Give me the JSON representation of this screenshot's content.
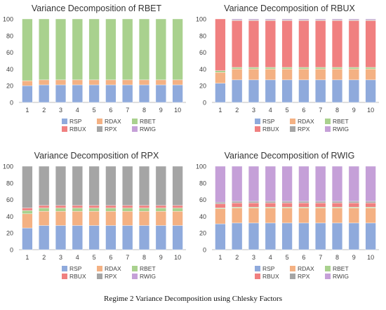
{
  "caption": "Regime 2 Variance Decomposition using Chlesky Factors",
  "colors": {
    "RSP": "#8faadc",
    "RDAX": "#f4b183",
    "RBET": "#a9d18e",
    "RBUX": "#f08080",
    "RPX": "#a5a5a5",
    "RWIG": "#c5a0d8",
    "axis": "#bfbfbf",
    "text": "#404040"
  },
  "chart_data": [
    {
      "type": "bar",
      "stacked": true,
      "title": "Variance Decomposition of RBET",
      "categories": [
        "1",
        "2",
        "3",
        "4",
        "5",
        "6",
        "7",
        "8",
        "9",
        "10"
      ],
      "ylim": [
        0,
        100
      ],
      "yticks": [
        0,
        20,
        40,
        60,
        80,
        100
      ],
      "legend": [
        "RSP",
        "RDAX",
        "RBET",
        "RBUX",
        "RPX",
        "RWIG"
      ],
      "legend_position": "bottom",
      "series": [
        {
          "name": "RSP",
          "values": [
            20,
            21,
            21,
            21,
            21,
            21,
            21,
            21,
            21,
            21
          ]
        },
        {
          "name": "RDAX",
          "values": [
            6,
            6,
            6,
            6,
            6,
            6,
            6,
            6,
            6,
            6
          ]
        },
        {
          "name": "RBET",
          "values": [
            74,
            73,
            73,
            73,
            73,
            73,
            73,
            73,
            73,
            73
          ]
        },
        {
          "name": "RBUX",
          "values": [
            0,
            0,
            0,
            0,
            0,
            0,
            0,
            0,
            0,
            0
          ]
        },
        {
          "name": "RPX",
          "values": [
            0,
            0,
            0,
            0,
            0,
            0,
            0,
            0,
            0,
            0
          ]
        },
        {
          "name": "RWIG",
          "values": [
            0,
            0,
            0,
            0,
            0,
            0,
            0,
            0,
            0,
            0
          ]
        }
      ]
    },
    {
      "type": "bar",
      "stacked": true,
      "title": "Variance Decomposition of RBUX",
      "categories": [
        "1",
        "2",
        "3",
        "4",
        "5",
        "6",
        "7",
        "8",
        "9",
        "10"
      ],
      "ylim": [
        0,
        100
      ],
      "yticks": [
        0,
        20,
        40,
        60,
        80,
        100
      ],
      "legend": [
        "RSP",
        "RDAX",
        "RBET",
        "RBUX",
        "RPX",
        "RWIG"
      ],
      "legend_position": "bottom",
      "series": [
        {
          "name": "RSP",
          "values": [
            23,
            27,
            27,
            27,
            27,
            27,
            27,
            27,
            27,
            27
          ]
        },
        {
          "name": "RDAX",
          "values": [
            13,
            13,
            13,
            13,
            13,
            13,
            13,
            13,
            13,
            13
          ]
        },
        {
          "name": "RBET",
          "values": [
            2,
            2,
            2,
            2,
            2,
            2,
            2,
            2,
            2,
            2
          ]
        },
        {
          "name": "RBUX",
          "values": [
            62,
            56,
            56,
            56,
            56,
            56,
            56,
            56,
            56,
            56
          ]
        },
        {
          "name": "RPX",
          "values": [
            0,
            1,
            1,
            1,
            1,
            1,
            1,
            1,
            1,
            1
          ]
        },
        {
          "name": "RWIG",
          "values": [
            0,
            1,
            1,
            1,
            1,
            1,
            1,
            1,
            1,
            1
          ]
        }
      ]
    },
    {
      "type": "bar",
      "stacked": true,
      "title": "Variance Decomposition of RPX",
      "categories": [
        "1",
        "2",
        "3",
        "4",
        "5",
        "6",
        "7",
        "8",
        "9",
        "10"
      ],
      "ylim": [
        0,
        100
      ],
      "yticks": [
        0,
        20,
        40,
        60,
        80,
        100
      ],
      "legend": [
        "RSP",
        "RDAX",
        "RBET",
        "RBUX",
        "RPX",
        "RWIG"
      ],
      "legend_position": "bottom",
      "series": [
        {
          "name": "RSP",
          "values": [
            26,
            29,
            29,
            29,
            29,
            29,
            29,
            29,
            29,
            29
          ]
        },
        {
          "name": "RDAX",
          "values": [
            17,
            17,
            17,
            17,
            17,
            17,
            17,
            17,
            17,
            17
          ]
        },
        {
          "name": "RBET",
          "values": [
            4,
            4,
            4,
            4,
            4,
            4,
            4,
            4,
            4,
            4
          ]
        },
        {
          "name": "RBUX",
          "values": [
            3,
            3,
            3,
            3,
            3,
            3,
            3,
            3,
            3,
            3
          ]
        },
        {
          "name": "RPX",
          "values": [
            50,
            47,
            47,
            47,
            47,
            47,
            47,
            47,
            47,
            47
          ]
        },
        {
          "name": "RWIG",
          "values": [
            0,
            0,
            0,
            0,
            0,
            0,
            0,
            0,
            0,
            0
          ]
        }
      ]
    },
    {
      "type": "bar",
      "stacked": true,
      "title": "Variance Decomposition of RWIG",
      "categories": [
        "1",
        "2",
        "3",
        "4",
        "5",
        "6",
        "7",
        "8",
        "9",
        "10"
      ],
      "ylim": [
        0,
        100
      ],
      "yticks": [
        0,
        20,
        40,
        60,
        80,
        100
      ],
      "legend": [
        "RSP",
        "RDAX",
        "RBET",
        "RBUX",
        "RPX",
        "RWIG"
      ],
      "legend_position": "bottom",
      "series": [
        {
          "name": "RSP",
          "values": [
            31,
            32,
            32,
            32,
            32,
            32,
            32,
            32,
            32,
            32
          ]
        },
        {
          "name": "RDAX",
          "values": [
            18,
            18,
            18,
            18,
            18,
            18,
            18,
            18,
            18,
            18
          ]
        },
        {
          "name": "RBET",
          "values": [
            1,
            1,
            1,
            1,
            1,
            1,
            1,
            1,
            1,
            1
          ]
        },
        {
          "name": "RBUX",
          "values": [
            5,
            5,
            5,
            5,
            5,
            5,
            5,
            5,
            5,
            5
          ]
        },
        {
          "name": "RPX",
          "values": [
            2,
            2,
            2,
            2,
            2,
            2,
            2,
            2,
            2,
            2
          ]
        },
        {
          "name": "RWIG",
          "values": [
            43,
            42,
            42,
            42,
            42,
            42,
            42,
            42,
            42,
            42
          ]
        }
      ]
    }
  ]
}
